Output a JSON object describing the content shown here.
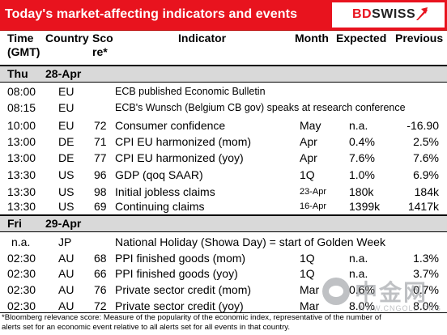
{
  "header": {
    "title": "Today's market-affecting indicators and events",
    "logo_bd": "BD",
    "logo_swiss": "SWISS"
  },
  "columns": {
    "time": "Time",
    "time2": "(GMT)",
    "country": "Country",
    "score": "Sco",
    "score2": "re*",
    "indicator": "Indicator",
    "month": "Month",
    "expected": "Expected",
    "previous": "Previous"
  },
  "days": [
    {
      "day": "Thu",
      "date": "28-Apr",
      "rows": [
        {
          "time": "08:00",
          "country": "EU",
          "score": "",
          "indicator": "ECB published Economic Bulletin",
          "month": "",
          "expected": "",
          "previous": "",
          "small": true
        },
        {
          "time": "08:15",
          "country": "EU",
          "score": "",
          "indicator": "ECB's Wunsch (Belgium CB gov) speaks at research conference",
          "month": "",
          "expected": "",
          "previous": "",
          "small": true
        },
        {
          "time": "10:00",
          "country": "EU",
          "score": "72",
          "indicator": "Consumer confidence",
          "month": "May",
          "expected": "n.a.",
          "previous": "-16.90"
        },
        {
          "time": "13:00",
          "country": "DE",
          "score": "71",
          "indicator": "CPI EU harmonized (mom)",
          "month": "Apr",
          "expected": "0.4%",
          "previous": "2.5%"
        },
        {
          "time": "13:00",
          "country": "DE",
          "score": "77",
          "indicator": "CPI EU harmonized (yoy)",
          "month": "Apr",
          "expected": "7.6%",
          "previous": "7.6%"
        },
        {
          "time": "13:30",
          "country": "US",
          "score": "96",
          "indicator": "GDP (qoq SAAR)",
          "month": "1Q",
          "expected": "1.0%",
          "previous": "6.9%"
        },
        {
          "time": "13:30",
          "country": "US",
          "score": "98",
          "indicator": "Initial jobless claims",
          "month": "23-Apr",
          "expected": "180k",
          "previous": "184k",
          "small_month": true
        },
        {
          "time": "13:30",
          "country": "US",
          "score": "69",
          "indicator": "Continuing claims",
          "month": "16-Apr",
          "expected": "1399k",
          "previous": "1417k",
          "small_month": true
        }
      ]
    },
    {
      "day": "Fri",
      "date": "29-Apr",
      "rows": [
        {
          "time": "n.a.",
          "country": "JP",
          "score": "",
          "indicator": "National Holiday (Showa Day) = start of Golden Week",
          "month": "",
          "expected": "",
          "previous": ""
        },
        {
          "time": "02:30",
          "country": "AU",
          "score": "68",
          "indicator": "PPI finished goods (mom)",
          "month": "1Q",
          "expected": "n.a.",
          "previous": "1.3%"
        },
        {
          "time": "02:30",
          "country": "AU",
          "score": "66",
          "indicator": "PPI finished goods (yoy)",
          "month": "1Q",
          "expected": "n.a.",
          "previous": "3.7%"
        },
        {
          "time": "02:30",
          "country": "AU",
          "score": "76",
          "indicator": "Private sector credit (mom)",
          "month": "Mar",
          "expected": "0.6%",
          "previous": "0.7%"
        },
        {
          "time": "02:30",
          "country": "AU",
          "score": "72",
          "indicator": "Private sector credit (yoy)",
          "month": "Mar",
          "expected": "8.0%",
          "previous": "8.0%"
        }
      ]
    }
  ],
  "footnote": {
    "line1": "*Bloomberg relevance score:  Measure of the popularity of the economic index, representative of the number of",
    "line2": "alerts set for an economic event relative to all alerts set for all events in that country."
  },
  "watermark": {
    "text": "中金网",
    "sub": "WWW.CNGOLD.ORG"
  },
  "colors": {
    "header_red": "#e8131e",
    "day_row_gray": "#d9d9d9"
  }
}
